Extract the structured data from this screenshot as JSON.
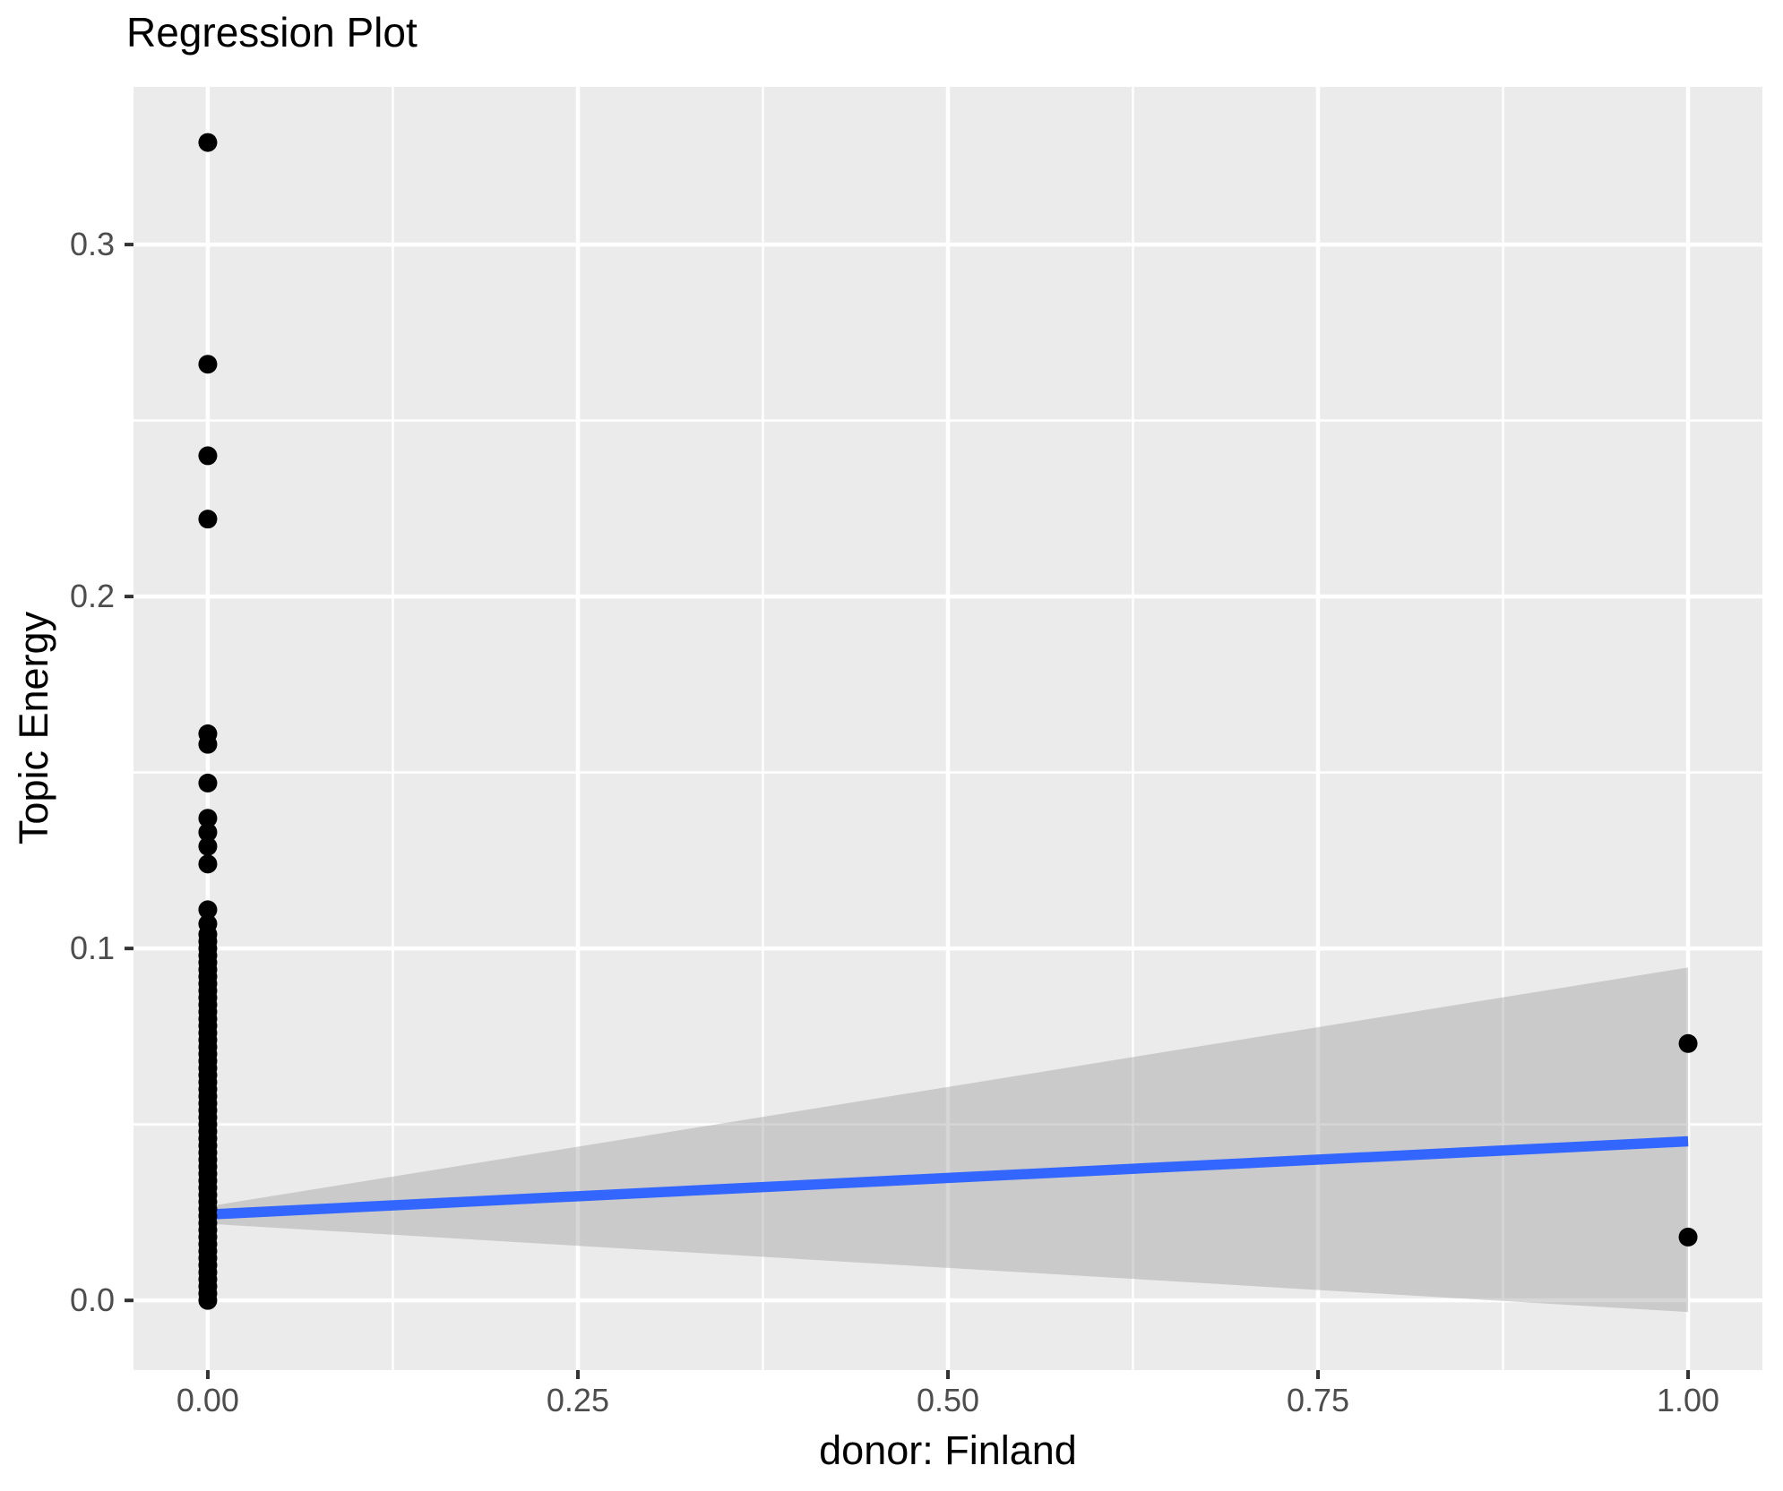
{
  "chart_data": {
    "type": "scatter",
    "title": "Regression Plot",
    "xlabel": "donor: Finland",
    "ylabel": "Topic Energy",
    "grid": true,
    "legend": "none",
    "xlim": [
      -0.0502,
      1.0502
    ],
    "ylim": [
      -0.0198,
      0.3448
    ],
    "x_ticks": {
      "values": [
        0,
        0.25,
        0.5,
        0.75,
        1
      ],
      "labels": [
        "0.00",
        "0.25",
        "0.50",
        "0.75",
        "1.00"
      ]
    },
    "y_ticks": {
      "values": [
        0,
        0.1,
        0.2,
        0.3
      ],
      "labels": [
        "0.0",
        "0.1",
        "0.2",
        "0.3"
      ]
    },
    "x_minor_gridlines": [
      0.125,
      0.375,
      0.625,
      0.875
    ],
    "y_minor_gridlines": [
      0.05,
      0.15,
      0.25
    ],
    "series": [
      {
        "name": "observations at donor=0",
        "x": 0,
        "y": [
          0.0,
          0.002,
          0.004,
          0.006,
          0.008,
          0.01,
          0.012,
          0.014,
          0.016,
          0.018,
          0.02,
          0.022,
          0.024,
          0.026,
          0.028,
          0.03,
          0.032,
          0.034,
          0.036,
          0.038,
          0.04,
          0.042,
          0.044,
          0.046,
          0.048,
          0.05,
          0.052,
          0.054,
          0.056,
          0.058,
          0.06,
          0.062,
          0.064,
          0.066,
          0.068,
          0.07,
          0.072,
          0.074,
          0.076,
          0.078,
          0.08,
          0.082,
          0.084,
          0.086,
          0.088,
          0.09,
          0.092,
          0.094,
          0.096,
          0.098,
          0.1,
          0.102,
          0.104,
          0.107,
          0.111,
          0.124,
          0.129,
          0.133,
          0.137,
          0.147,
          0.158,
          0.161,
          0.222,
          0.24,
          0.266,
          0.329
        ]
      },
      {
        "name": "observations at donor=1",
        "x": 1,
        "y": [
          0.073,
          0.018
        ]
      }
    ],
    "regression_line": {
      "x": [
        0,
        1
      ],
      "y": [
        0.0244,
        0.0452
      ]
    },
    "confidence_band": {
      "x": [
        0,
        1
      ],
      "y_upper": [
        0.0267,
        0.0946
      ],
      "y_lower": [
        0.0218,
        -0.0033
      ]
    },
    "colors": {
      "panel_background": "#EBEBEB",
      "gridline": "#FFFFFF",
      "point": "#000000",
      "regression_line": "#3366FF",
      "confidence_band_rgba": "rgba(153,153,153,0.4)",
      "tick_mark": "#333333",
      "tick_label": "#4D4D4D",
      "axis_title": "#000000",
      "title": "#000000"
    }
  }
}
